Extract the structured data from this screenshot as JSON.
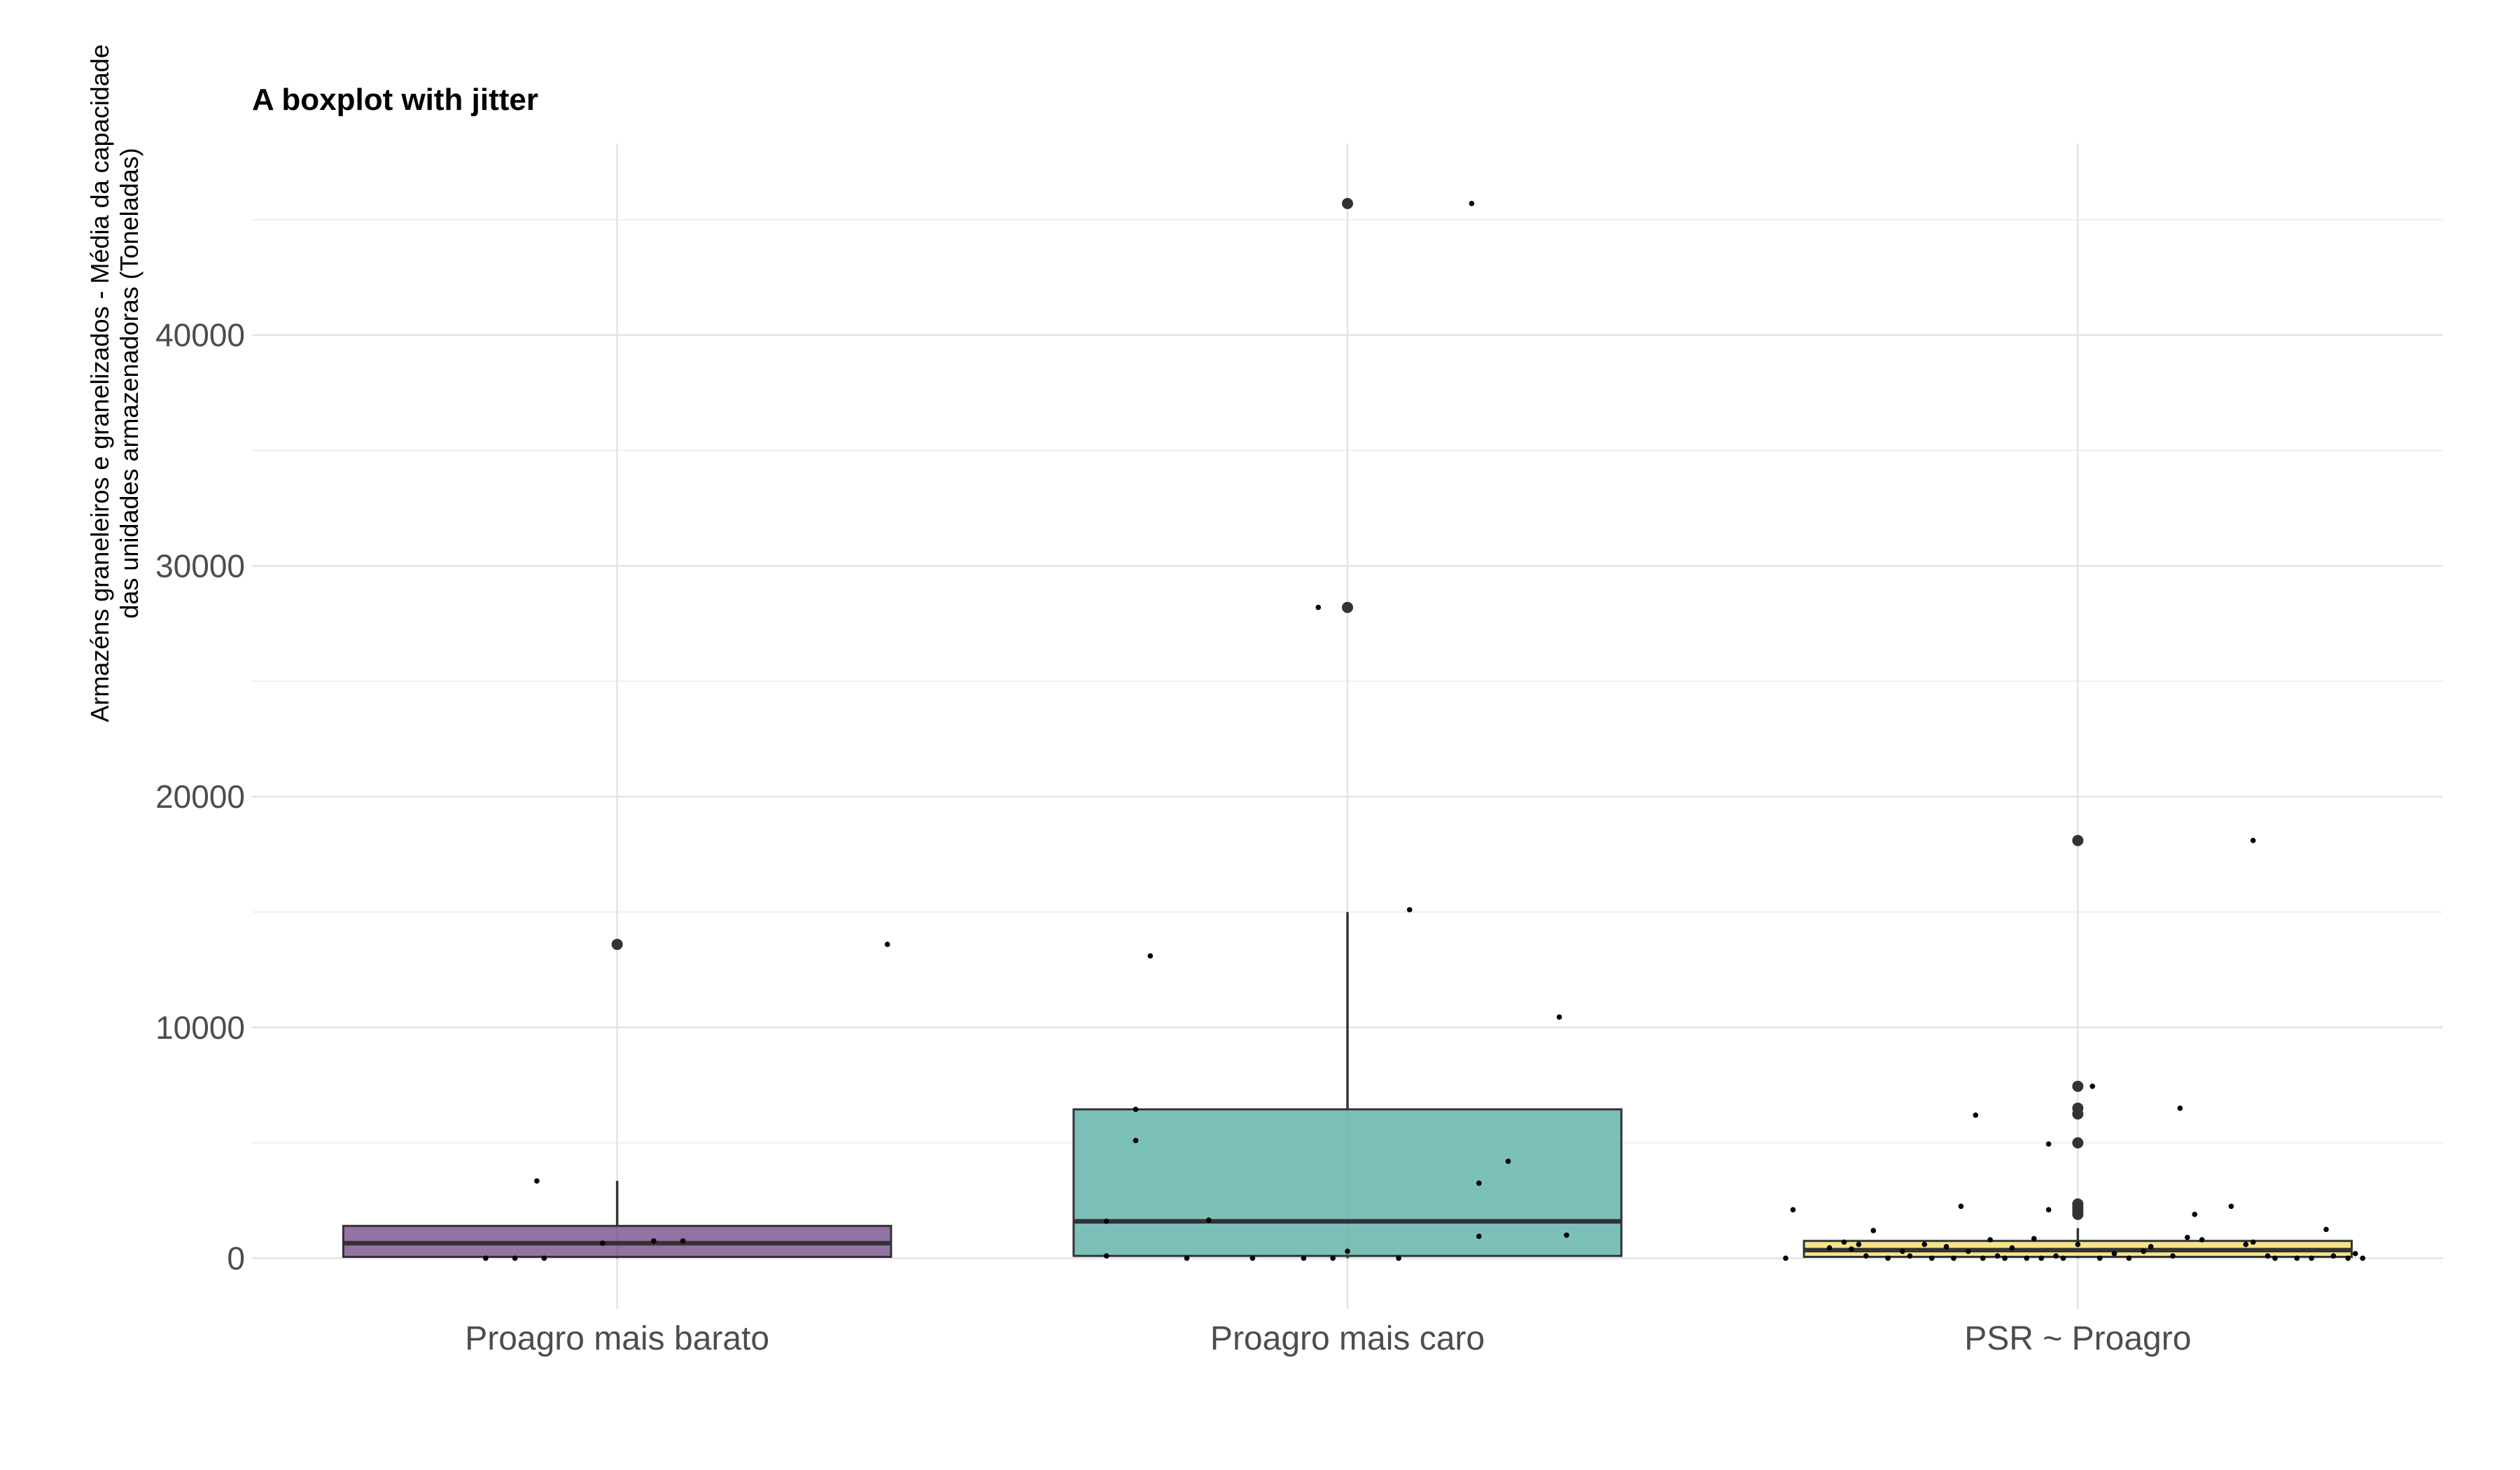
{
  "chart_data": {
    "type": "boxplot",
    "title": "A boxplot with jitter",
    "xlabel": "",
    "ylabel_lines": [
      "Armazéns graneleiros e granelizados - Média da capacidade",
      "das unidades armazenadoras (Toneladas)"
    ],
    "ylim": [
      -2200,
      48300
    ],
    "yticks": [
      0,
      10000,
      20000,
      30000,
      40000
    ],
    "ytick_labels": [
      "0",
      "10000",
      "20000",
      "30000",
      "40000"
    ],
    "grid": true,
    "legend": "none",
    "categories": [
      "Proagro mais barato",
      "Proagro mais caro",
      "PSR ~ Proagro"
    ],
    "boxes": [
      {
        "category": "Proagro mais barato",
        "color": "#6a3d80",
        "q1": 60,
        "median": 650,
        "q3": 1400,
        "whisker_low": 0,
        "whisker_high": 3350,
        "outliers": [
          13600
        ],
        "jitter": [
          {
            "dx": -0.18,
            "y": 0
          },
          {
            "dx": -0.14,
            "y": 0
          },
          {
            "dx": -0.11,
            "y": 3350
          },
          {
            "dx": -0.1,
            "y": 0
          },
          {
            "dx": -0.02,
            "y": 650
          },
          {
            "dx": 0.05,
            "y": 750
          },
          {
            "dx": 0.09,
            "y": 750
          },
          {
            "dx": 0.37,
            "y": 13600
          }
        ]
      },
      {
        "category": "Proagro mais caro",
        "color": "#4aa8a0",
        "q1": 100,
        "median": 1600,
        "q3": 6450,
        "whisker_low": 0,
        "whisker_high": 15000,
        "outliers": [
          28200,
          45700
        ],
        "jitter": [
          {
            "dx": -0.33,
            "y": 1600
          },
          {
            "dx": -0.33,
            "y": 100
          },
          {
            "dx": -0.29,
            "y": 6450
          },
          {
            "dx": -0.29,
            "y": 5100
          },
          {
            "dx": -0.27,
            "y": 13100
          },
          {
            "dx": -0.22,
            "y": 0
          },
          {
            "dx": -0.19,
            "y": 1650
          },
          {
            "dx": -0.13,
            "y": 0
          },
          {
            "dx": -0.06,
            "y": 0
          },
          {
            "dx": -0.04,
            "y": 28200
          },
          {
            "dx": -0.02,
            "y": 0
          },
          {
            "dx": 0.0,
            "y": 300
          },
          {
            "dx": 0.07,
            "y": 0
          },
          {
            "dx": 0.085,
            "y": 15100
          },
          {
            "dx": 0.17,
            "y": 45700
          },
          {
            "dx": 0.18,
            "y": 3250
          },
          {
            "dx": 0.18,
            "y": 950
          },
          {
            "dx": 0.22,
            "y": 4200
          },
          {
            "dx": 0.29,
            "y": 10450
          },
          {
            "dx": 0.3,
            "y": 1000
          }
        ]
      },
      {
        "category": "PSR ~ Proagro",
        "color": "#f2d95c",
        "q1": 60,
        "median": 350,
        "q3": 750,
        "whisker_low": 0,
        "whisker_high": 1300,
        "outliers": [
          1900,
          2050,
          2200,
          2350,
          5000,
          6250,
          6500,
          7450,
          18100
        ],
        "jitter": [
          {
            "dx": -0.4,
            "y": 0
          },
          {
            "dx": -0.39,
            "y": 2100
          },
          {
            "dx": -0.34,
            "y": 450
          },
          {
            "dx": -0.32,
            "y": 700
          },
          {
            "dx": -0.31,
            "y": 400
          },
          {
            "dx": -0.3,
            "y": 600
          },
          {
            "dx": -0.29,
            "y": 100
          },
          {
            "dx": -0.28,
            "y": 1200
          },
          {
            "dx": -0.26,
            "y": 0
          },
          {
            "dx": -0.24,
            "y": 300
          },
          {
            "dx": -0.23,
            "y": 100
          },
          {
            "dx": -0.21,
            "y": 600
          },
          {
            "dx": -0.2,
            "y": 0
          },
          {
            "dx": -0.18,
            "y": 500
          },
          {
            "dx": -0.17,
            "y": 0
          },
          {
            "dx": -0.16,
            "y": 2250
          },
          {
            "dx": -0.15,
            "y": 300
          },
          {
            "dx": -0.14,
            "y": 6200
          },
          {
            "dx": -0.13,
            "y": 0
          },
          {
            "dx": -0.12,
            "y": 800
          },
          {
            "dx": -0.11,
            "y": 100
          },
          {
            "dx": -0.1,
            "y": 0
          },
          {
            "dx": -0.09,
            "y": 450
          },
          {
            "dx": -0.07,
            "y": 0
          },
          {
            "dx": -0.06,
            "y": 850
          },
          {
            "dx": -0.05,
            "y": 0
          },
          {
            "dx": -0.04,
            "y": 2100
          },
          {
            "dx": -0.03,
            "y": 100
          },
          {
            "dx": -0.04,
            "y": 4950
          },
          {
            "dx": -0.02,
            "y": 0
          },
          {
            "dx": 0.0,
            "y": 600
          },
          {
            "dx": 0.02,
            "y": 7450
          },
          {
            "dx": 0.03,
            "y": 0
          },
          {
            "dx": 0.05,
            "y": 200
          },
          {
            "dx": 0.07,
            "y": 0
          },
          {
            "dx": 0.09,
            "y": 300
          },
          {
            "dx": 0.1,
            "y": 500
          },
          {
            "dx": 0.13,
            "y": 100
          },
          {
            "dx": 0.14,
            "y": 6500
          },
          {
            "dx": 0.15,
            "y": 900
          },
          {
            "dx": 0.16,
            "y": 1900
          },
          {
            "dx": 0.17,
            "y": 800
          },
          {
            "dx": 0.21,
            "y": 2250
          },
          {
            "dx": 0.23,
            "y": 600
          },
          {
            "dx": 0.24,
            "y": 700
          },
          {
            "dx": 0.26,
            "y": 100
          },
          {
            "dx": 0.27,
            "y": 0
          },
          {
            "dx": 0.24,
            "y": 18100
          },
          {
            "dx": 0.3,
            "y": 0
          },
          {
            "dx": 0.32,
            "y": 0
          },
          {
            "dx": 0.34,
            "y": 1250
          },
          {
            "dx": 0.35,
            "y": 100
          },
          {
            "dx": 0.37,
            "y": 0
          },
          {
            "dx": 0.38,
            "y": 200
          },
          {
            "dx": 0.39,
            "y": 0
          }
        ]
      }
    ]
  }
}
